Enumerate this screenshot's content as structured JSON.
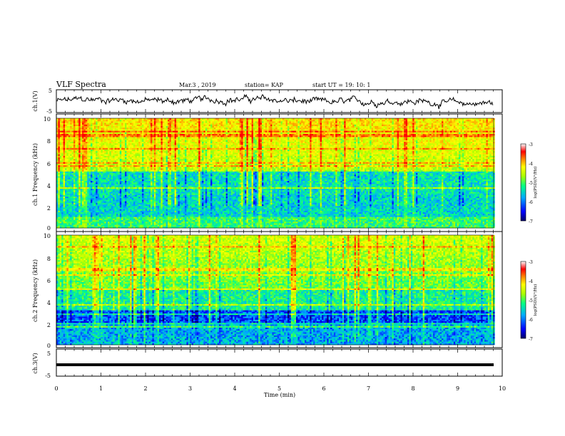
{
  "header": {
    "title": "VLF Spectra",
    "date": "Mar.3 , 2019",
    "station": "station= KAP",
    "start": "start UT = 19: 10: 1"
  },
  "chart_data": [
    {
      "type": "line",
      "title": "",
      "ylabel": "ch.1(V)",
      "xlim": [
        0,
        10
      ],
      "ylim": [
        -5,
        5
      ],
      "yticks": [
        "5",
        "-5"
      ],
      "series": [
        {
          "values_desc": "noisy waveform centered near 0 V"
        }
      ]
    },
    {
      "type": "heatmap",
      "ylabel": "ch.1 Frequency (kHz)",
      "xlim": [
        0,
        10
      ],
      "ylim": [
        0,
        10
      ],
      "yticks": [
        "0",
        "2",
        "4",
        "6",
        "8",
        "10"
      ],
      "colorbar": {
        "label": "log(PSD)(V²/Hz)",
        "range": [
          -7,
          -3
        ],
        "ticks": [
          "-3",
          "-4",
          "-5",
          "-6",
          "-7"
        ]
      }
    },
    {
      "type": "heatmap",
      "ylabel": "ch.2 Frequency (kHz)",
      "xlim": [
        0,
        10
      ],
      "ylim": [
        0,
        10
      ],
      "yticks": [
        "0",
        "2",
        "4",
        "6",
        "8",
        "10"
      ],
      "colorbar": {
        "label": "log(PSD)(V²/Hz)",
        "range": [
          -7,
          -3
        ],
        "ticks": [
          "-3",
          "-4",
          "-5",
          "-6",
          "-7"
        ]
      }
    },
    {
      "type": "line",
      "ylabel": "ch.3(V)",
      "xlim": [
        0,
        10
      ],
      "ylim": [
        -5,
        5
      ],
      "yticks": [
        "5",
        "-5"
      ],
      "xlabel": "Time (min)",
      "xticks": [
        "0",
        "1",
        "2",
        "3",
        "4",
        "5",
        "6",
        "7",
        "8",
        "9",
        "10"
      ],
      "series": [
        {
          "constant": -1
        }
      ]
    }
  ],
  "colors": {
    "cmap": [
      "#000066",
      "#0000ff",
      "#00aaff",
      "#00ff88",
      "#aaff00",
      "#ffff00",
      "#ff8800",
      "#ff0000",
      "#ffffff"
    ]
  }
}
